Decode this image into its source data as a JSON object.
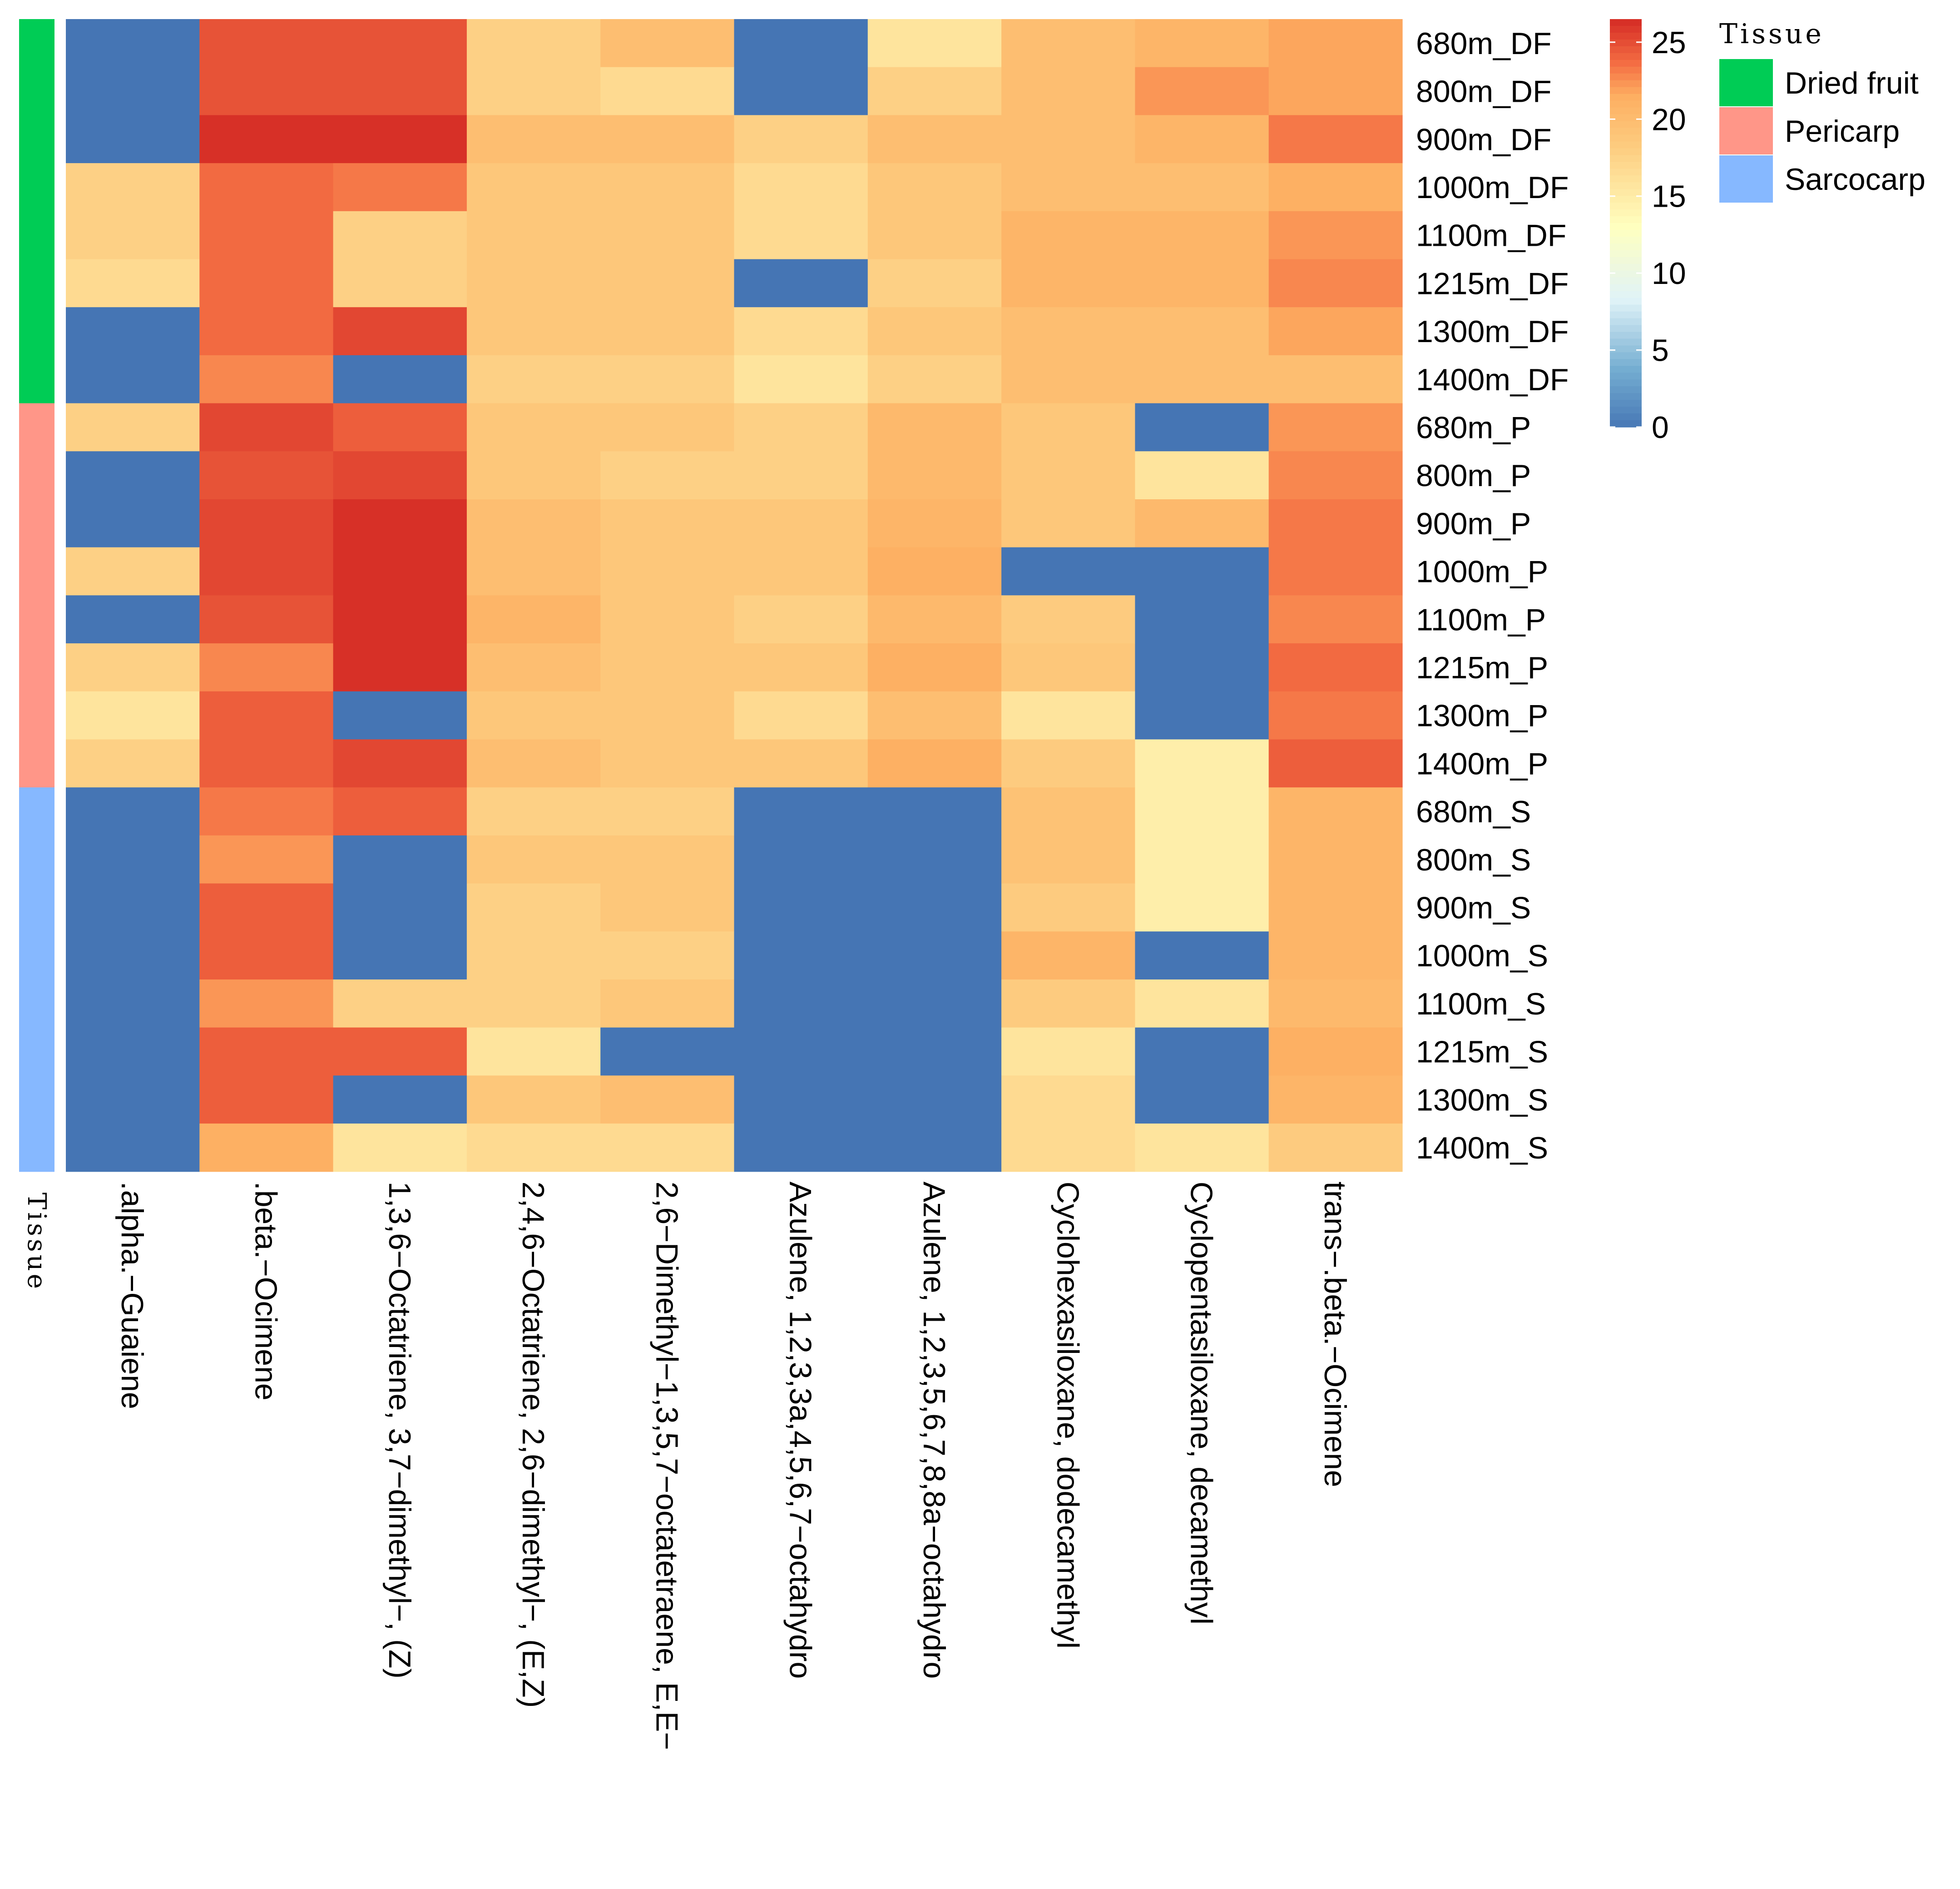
{
  "chart_data": {
    "type": "heatmap",
    "title": "",
    "rows": [
      "680m_DF",
      "800m_DF",
      "900m_DF",
      "1000m_DF",
      "1100m_DF",
      "1215m_DF",
      "1300m_DF",
      "1400m_DF",
      "680m_P",
      "800m_P",
      "900m_P",
      "1000m_P",
      "1100m_P",
      "1215m_P",
      "1300m_P",
      "1400m_P",
      "680m_S",
      "800m_S",
      "900m_S",
      "1000m_S",
      "1100m_S",
      "1215m_S",
      "1300m_S",
      "1400m_S"
    ],
    "columns": [
      ".alpha.−Guaiene",
      ".beta.−Ocimene",
      "1,3,6−Octatriene, 3,7−dimethyl−, (Z)",
      "2,4,6−Octatriene, 2,6−dimethyl−, (E,Z)",
      "2,6−Dimethyl−1,3,5,7−octatetraene, E,E−",
      "Azulene, 1,2,3,3a,4,5,6,7−octahydro",
      "Azulene, 1,2,3,5,6,7,8,8a−octahydro",
      "Cyclohexasiloxane, dodecamethyl",
      "Cyclopentasiloxane, decamethyl",
      "trans−.beta.−Ocimene"
    ],
    "values": [
      [
        0,
        25,
        25,
        18,
        20,
        0,
        16,
        20,
        21,
        22
      ],
      [
        0,
        25,
        25,
        18,
        17,
        0,
        18,
        20,
        22.5,
        22
      ],
      [
        0,
        26.5,
        26.5,
        20,
        20,
        18,
        20,
        20,
        21,
        23.5
      ],
      [
        18,
        24,
        23.5,
        19,
        19,
        17,
        19,
        20,
        20,
        21.5
      ],
      [
        18,
        24,
        18,
        19,
        19,
        17,
        19,
        21,
        21,
        22.5
      ],
      [
        17,
        24,
        18,
        19,
        19,
        0,
        18,
        21,
        21,
        23
      ],
      [
        0,
        24,
        25.5,
        19,
        19,
        17,
        19,
        20,
        20,
        22
      ],
      [
        0,
        23,
        0,
        18,
        18,
        16,
        18,
        20,
        20,
        20
      ],
      [
        18,
        25.5,
        24.5,
        19,
        19,
        18,
        20.5,
        19,
        0,
        22.5
      ],
      [
        0,
        25,
        25.5,
        19,
        18,
        18,
        20.5,
        19,
        16,
        23
      ],
      [
        0,
        25.5,
        26.5,
        20,
        19,
        19,
        21,
        19,
        20.5,
        23.5
      ],
      [
        18,
        25.5,
        26.5,
        20,
        19,
        19,
        21.5,
        0,
        0,
        23.5
      ],
      [
        0,
        25,
        26.5,
        21,
        19,
        18,
        20.5,
        18.5,
        0,
        23
      ],
      [
        18,
        23,
        26.5,
        20,
        19,
        19,
        21.5,
        19,
        0,
        24
      ],
      [
        16,
        24.5,
        0,
        19,
        19,
        17,
        20,
        16,
        0,
        23.5
      ],
      [
        18,
        24.5,
        25.5,
        20,
        19,
        19,
        21.5,
        18.5,
        15,
        24.5
      ],
      [
        0,
        23.5,
        24.5,
        18,
        18,
        0,
        0,
        19.5,
        15,
        21
      ],
      [
        0,
        22.5,
        0,
        19,
        19,
        0,
        0,
        19.5,
        15,
        21
      ],
      [
        0,
        24.5,
        0,
        18,
        19,
        0,
        0,
        18.5,
        15,
        21
      ],
      [
        0,
        24.5,
        0,
        18,
        18,
        0,
        0,
        21,
        0,
        21
      ],
      [
        0,
        22.5,
        18,
        18,
        19,
        0,
        0,
        18.5,
        16,
        20.5
      ],
      [
        0,
        24.5,
        24.5,
        16,
        0,
        0,
        0,
        16,
        0,
        21.5
      ],
      [
        0,
        24.5,
        0,
        19,
        20,
        0,
        0,
        17,
        0,
        21
      ],
      [
        0,
        21.5,
        16,
        17,
        17,
        0,
        0,
        17,
        16,
        18.5
      ]
    ],
    "tissue": [
      "Dried fruit",
      "Dried fruit",
      "Dried fruit",
      "Dried fruit",
      "Dried fruit",
      "Dried fruit",
      "Dried fruit",
      "Dried fruit",
      "Pericarp",
      "Pericarp",
      "Pericarp",
      "Pericarp",
      "Pericarp",
      "Pericarp",
      "Pericarp",
      "Pericarp",
      "Sarcocarp",
      "Sarcocarp",
      "Sarcocarp",
      "Sarcocarp",
      "Sarcocarp",
      "Sarcocarp",
      "Sarcocarp",
      "Sarcocarp"
    ],
    "annotation_label": "Tissue",
    "colorbar": {
      "ticks": [
        0,
        5,
        10,
        15,
        20,
        25
      ],
      "range": [
        0,
        26.5
      ]
    },
    "legend": {
      "title": "Tissue",
      "items": [
        {
          "label": "Dried fruit",
          "color": "#00CC55"
        },
        {
          "label": "Pericarp",
          "color": "#FF9688"
        },
        {
          "label": "Sarcocarp",
          "color": "#86B8FF"
        }
      ]
    },
    "palette": [
      "#4575B4",
      "#FFFFBF",
      "#D73027"
    ]
  }
}
